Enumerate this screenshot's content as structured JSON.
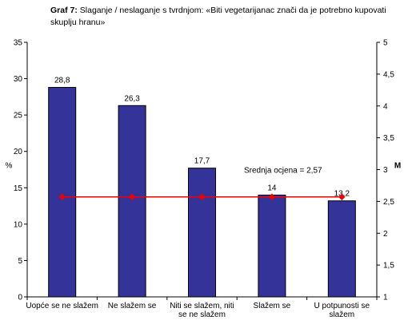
{
  "title_prefix": "Graf 7:",
  "title_text": "Slaganje / neslaganje s tvrdnjom: «Biti vegetarijanac znači da je potrebno kupovati skuplju hranu»",
  "chart_data": {
    "type": "bar",
    "categories": [
      [
        "Uopće se ne slažem"
      ],
      [
        "Ne slažem se"
      ],
      [
        "Niti se slažem, niti",
        "se ne slažem"
      ],
      [
        "Slažem se"
      ],
      [
        "U potpunosti se",
        "slažem"
      ]
    ],
    "values": [
      28.8,
      26.3,
      17.7,
      14,
      13.2
    ],
    "value_labels": [
      "28,8",
      "26,3",
      "17,7",
      "14",
      "13,2"
    ],
    "ylabel": "%",
    "ylim": [
      0,
      35
    ],
    "yticks": [
      "0",
      "5",
      "10",
      "15",
      "20",
      "25",
      "30",
      "35"
    ],
    "y2label": "M",
    "y2lim": [
      1,
      5
    ],
    "y2ticks": [
      "1",
      "1,5",
      "2",
      "2,5",
      "3",
      "3,5",
      "4",
      "4,5",
      "5"
    ],
    "mean_line": {
      "value": 2.57,
      "label": "Srednja ocjena = 2,57",
      "color": "#ee0000"
    },
    "bar_color": "#333399",
    "grid": false
  }
}
